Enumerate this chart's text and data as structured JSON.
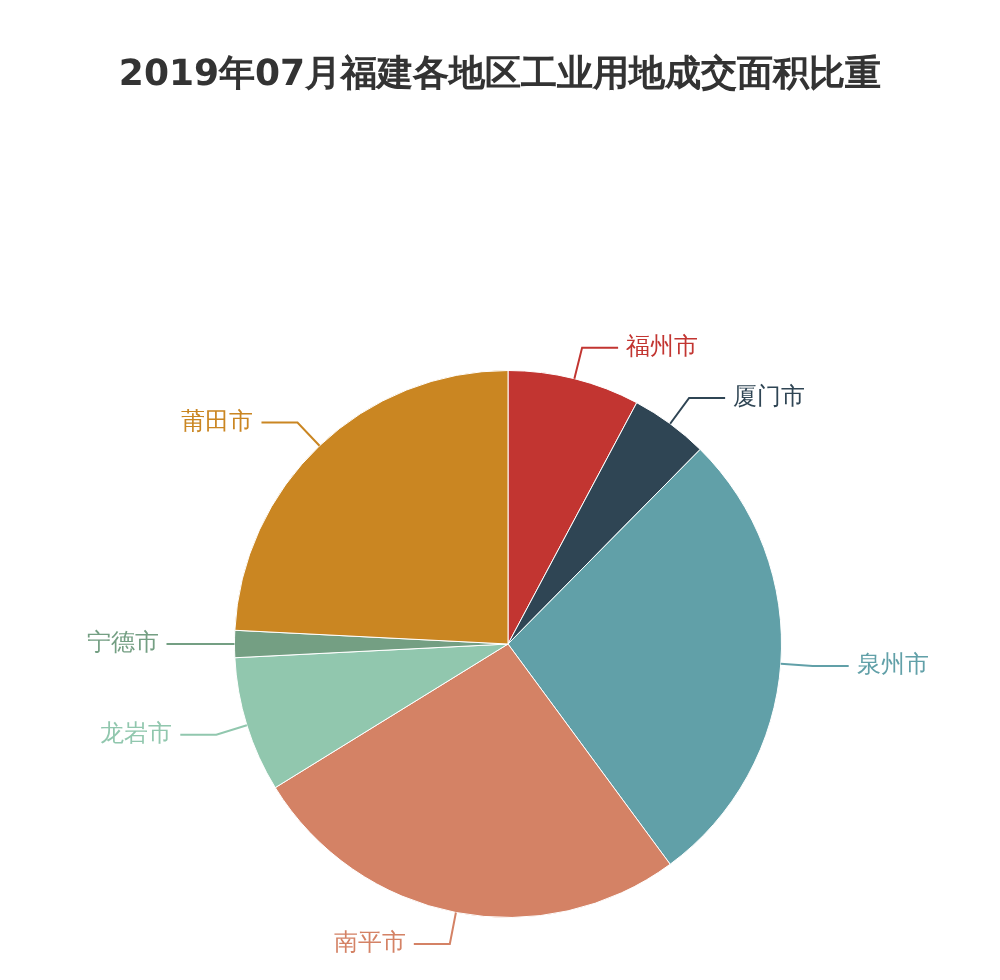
{
  "chart_data": {
    "type": "pie",
    "title": "2019年07月福建各地区工业用地成交面积比重",
    "categories": [
      "福州市",
      "厦门市",
      "泉州市",
      "南平市",
      "龙岩市",
      "宁德市",
      "莆田市"
    ],
    "values": [
      7.8,
      4.6,
      27.5,
      26.3,
      8.0,
      1.6,
      24.2
    ],
    "colors": [
      "#c23531",
      "#2f4554",
      "#61a0a8",
      "#d48265",
      "#91c7ae",
      "#749f83",
      "#ca8622"
    ],
    "legend": false
  }
}
